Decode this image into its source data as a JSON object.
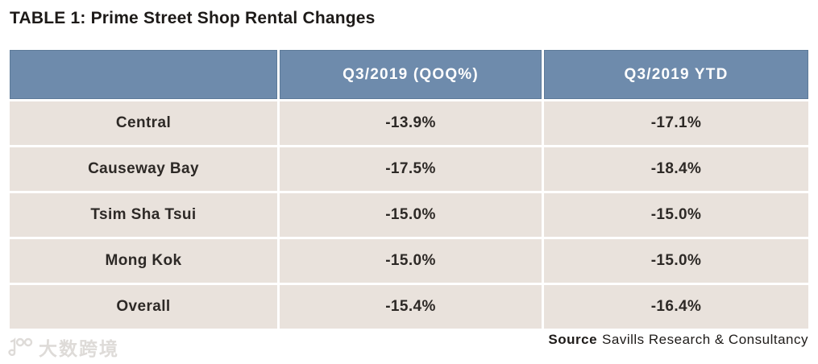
{
  "title": "TABLE 1: Prime Street Shop Rental Changes",
  "table": {
    "columns": [
      "",
      "Q3/2019 (QOQ%)",
      "Q3/2019 YTD"
    ],
    "rows": [
      [
        "Central",
        "-13.9%",
        "-17.1%"
      ],
      [
        "Causeway Bay",
        "-17.5%",
        "-18.4%"
      ],
      [
        "Tsim Sha Tsui",
        "-15.0%",
        "-15.0%"
      ],
      [
        "Mong Kok",
        "-15.0%",
        "-15.0%"
      ],
      [
        "Overall",
        "-15.4%",
        "-16.4%"
      ]
    ]
  },
  "source": {
    "label": "Source",
    "text": "Savills Research & Consultancy"
  },
  "watermark": {
    "text": "大数跨境"
  },
  "colors": {
    "header_bg": "#6e8bac",
    "header_border": "#5d7a99",
    "header_text": "#ffffff",
    "row_bg": "#e9e2dc",
    "row_text": "#2d2926",
    "title_text": "#1d1a18",
    "watermark": "#dedbd8"
  },
  "chart_data": {
    "type": "table",
    "title": "TABLE 1: Prime Street Shop Rental Changes",
    "columns": [
      "",
      "Q3/2019 (QOQ%)",
      "Q3/2019 YTD"
    ],
    "rows": [
      [
        "Central",
        "-13.9%",
        "-17.1%"
      ],
      [
        "Causeway Bay",
        "-17.5%",
        "-18.4%"
      ],
      [
        "Tsim Sha Tsui",
        "-15.0%",
        "-15.0%"
      ],
      [
        "Mong Kok",
        "-15.0%",
        "-15.0%"
      ],
      [
        "Overall",
        "-15.4%",
        "-16.4%"
      ]
    ],
    "values_numeric_pct": {
      "categories": [
        "Central",
        "Causeway Bay",
        "Tsim Sha Tsui",
        "Mong Kok",
        "Overall"
      ],
      "series": [
        {
          "name": "Q3/2019 (QOQ%)",
          "values": [
            -13.9,
            -17.5,
            -15.0,
            -15.0,
            -15.4
          ]
        },
        {
          "name": "Q3/2019 YTD",
          "values": [
            -17.1,
            -18.4,
            -15.0,
            -15.0,
            -16.4
          ]
        }
      ]
    },
    "source": "Savills Research & Consultancy",
    "legend_position": "none",
    "grid": false
  }
}
